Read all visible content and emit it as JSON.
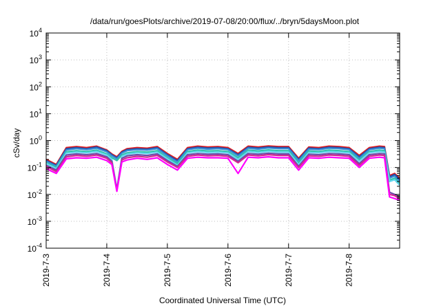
{
  "chart_data": {
    "type": "line",
    "title": "/data/run/goesPlots/archive/2019-07-08/20:00/flux/../bryn/5daysMoon.plot",
    "xlabel": "Coordinated Universal Time (UTC)",
    "ylabel": "cSv/day",
    "yscale": "log",
    "ylim": [
      0.0001,
      10000
    ],
    "xlim": [
      "2019-07-03T00:00",
      "2019-07-08T20:00"
    ],
    "grid": true,
    "legend": "none",
    "x_ticks": [
      "2019-7-3",
      "2019-7-4",
      "2019-7-5",
      "2019-7-6",
      "2019-7-7",
      "2019-7-8"
    ],
    "y_ticks": [
      {
        "value": 0.0001,
        "base": "10",
        "exp": "-4"
      },
      {
        "value": 0.001,
        "base": "10",
        "exp": "-3"
      },
      {
        "value": 0.01,
        "base": "10",
        "exp": "-2"
      },
      {
        "value": 0.1,
        "base": "10",
        "exp": "-1"
      },
      {
        "value": 1,
        "base": "10",
        "exp": "0"
      },
      {
        "value": 10,
        "base": "10",
        "exp": "1"
      },
      {
        "value": 100,
        "base": "10",
        "exp": "2"
      },
      {
        "value": 1000,
        "base": "10",
        "exp": "3"
      },
      {
        "value": 10000,
        "base": "10",
        "exp": "4"
      }
    ],
    "times": [
      "2019-07-03T00:00",
      "2019-07-03T04:00",
      "2019-07-03T08:00",
      "2019-07-03T12:00",
      "2019-07-03T16:00",
      "2019-07-03T20:00",
      "2019-07-04T00:00",
      "2019-07-04T02:00",
      "2019-07-04T04:00",
      "2019-07-04T06:00",
      "2019-07-04T08:00",
      "2019-07-04T12:00",
      "2019-07-04T16:00",
      "2019-07-04T20:00",
      "2019-07-05T00:00",
      "2019-07-05T04:00",
      "2019-07-05T08:00",
      "2019-07-05T12:00",
      "2019-07-05T16:00",
      "2019-07-05T20:00",
      "2019-07-06T00:00",
      "2019-07-06T04:00",
      "2019-07-06T08:00",
      "2019-07-06T12:00",
      "2019-07-06T16:00",
      "2019-07-06T20:00",
      "2019-07-07T00:00",
      "2019-07-07T04:00",
      "2019-07-07T08:00",
      "2019-07-07T12:00",
      "2019-07-07T16:00",
      "2019-07-07T20:00",
      "2019-07-08T00:00",
      "2019-07-08T04:00",
      "2019-07-08T08:00",
      "2019-07-08T12:00",
      "2019-07-08T14:00",
      "2019-07-08T16:00",
      "2019-07-08T18:00",
      "2019-07-08T20:00"
    ],
    "series": [
      {
        "color": "#e41a1c",
        "values": [
          0.2,
          0.13,
          0.55,
          0.6,
          0.55,
          0.62,
          0.45,
          0.32,
          0.25,
          0.4,
          0.5,
          0.55,
          0.52,
          0.6,
          0.33,
          0.2,
          0.55,
          0.62,
          0.58,
          0.6,
          0.55,
          0.33,
          0.62,
          0.58,
          0.63,
          0.6,
          0.6,
          0.22,
          0.58,
          0.55,
          0.62,
          0.6,
          0.55,
          0.28,
          0.55,
          0.62,
          0.6,
          0.05,
          0.06,
          0.04
        ]
      },
      {
        "color": "#1f4faa",
        "values": [
          0.18,
          0.12,
          0.5,
          0.55,
          0.5,
          0.58,
          0.42,
          0.3,
          0.23,
          0.37,
          0.46,
          0.5,
          0.48,
          0.55,
          0.3,
          0.18,
          0.5,
          0.57,
          0.53,
          0.55,
          0.5,
          0.3,
          0.57,
          0.53,
          0.58,
          0.55,
          0.55,
          0.2,
          0.53,
          0.5,
          0.57,
          0.55,
          0.5,
          0.25,
          0.5,
          0.57,
          0.55,
          0.045,
          0.055,
          0.035
        ]
      },
      {
        "color": "#3a8fd6",
        "values": [
          0.17,
          0.11,
          0.45,
          0.5,
          0.46,
          0.52,
          0.38,
          0.27,
          0.21,
          0.34,
          0.42,
          0.46,
          0.44,
          0.5,
          0.27,
          0.16,
          0.46,
          0.52,
          0.48,
          0.5,
          0.46,
          0.27,
          0.52,
          0.48,
          0.53,
          0.5,
          0.5,
          0.18,
          0.48,
          0.46,
          0.52,
          0.5,
          0.46,
          0.22,
          0.46,
          0.52,
          0.5,
          0.04,
          0.048,
          0.03
        ]
      },
      {
        "color": "#2ec4a8",
        "values": [
          0.15,
          0.1,
          0.38,
          0.42,
          0.39,
          0.44,
          0.32,
          0.23,
          0.18,
          0.29,
          0.35,
          0.39,
          0.37,
          0.42,
          0.23,
          0.14,
          0.39,
          0.44,
          0.41,
          0.42,
          0.39,
          0.23,
          0.44,
          0.41,
          0.45,
          0.42,
          0.42,
          0.15,
          0.41,
          0.39,
          0.44,
          0.42,
          0.39,
          0.19,
          0.39,
          0.44,
          0.42,
          0.034,
          0.04,
          0.025
        ]
      },
      {
        "color": "#66d8f0",
        "values": [
          0.14,
          0.09,
          0.34,
          0.37,
          0.35,
          0.39,
          0.29,
          0.2,
          0.016,
          0.26,
          0.31,
          0.35,
          0.33,
          0.37,
          0.21,
          0.12,
          0.35,
          0.39,
          0.36,
          0.37,
          0.35,
          0.2,
          0.39,
          0.36,
          0.4,
          0.37,
          0.37,
          0.13,
          0.36,
          0.35,
          0.39,
          0.37,
          0.35,
          0.17,
          0.35,
          0.39,
          0.37,
          0.03,
          0.035,
          0.022
        ]
      },
      {
        "color": "#6a4aa8",
        "values": [
          0.12,
          0.08,
          0.29,
          0.32,
          0.3,
          0.33,
          0.25,
          0.17,
          0.015,
          0.22,
          0.27,
          0.3,
          0.28,
          0.32,
          0.18,
          0.11,
          0.3,
          0.33,
          0.31,
          0.32,
          0.3,
          0.17,
          0.33,
          0.31,
          0.34,
          0.32,
          0.32,
          0.11,
          0.31,
          0.3,
          0.33,
          0.32,
          0.3,
          0.14,
          0.3,
          0.33,
          0.32,
          0.012,
          0.01,
          0.008
        ]
      },
      {
        "color": "#d62790",
        "values": [
          0.11,
          0.07,
          0.25,
          0.28,
          0.26,
          0.29,
          0.22,
          0.15,
          0.014,
          0.19,
          0.23,
          0.26,
          0.24,
          0.28,
          0.16,
          0.1,
          0.26,
          0.29,
          0.27,
          0.28,
          0.26,
          0.15,
          0.29,
          0.27,
          0.3,
          0.28,
          0.28,
          0.1,
          0.27,
          0.26,
          0.29,
          0.28,
          0.26,
          0.12,
          0.26,
          0.29,
          0.28,
          0.01,
          0.009,
          0.007
        ]
      },
      {
        "color": "#ff00ff",
        "values": [
          0.09,
          0.06,
          0.21,
          0.23,
          0.22,
          0.24,
          0.18,
          0.13,
          0.013,
          0.16,
          0.19,
          0.22,
          0.2,
          0.23,
          0.13,
          0.08,
          0.22,
          0.24,
          0.23,
          0.23,
          0.22,
          0.06,
          0.24,
          0.23,
          0.25,
          0.23,
          0.23,
          0.08,
          0.23,
          0.22,
          0.24,
          0.23,
          0.22,
          0.1,
          0.22,
          0.24,
          0.23,
          0.008,
          0.007,
          0.006
        ]
      }
    ]
  }
}
